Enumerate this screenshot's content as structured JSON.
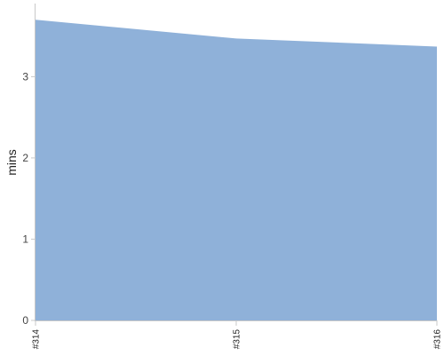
{
  "chart_data": {
    "type": "area",
    "ylabel": "mins",
    "categories": [
      "#314",
      "#315",
      "#316"
    ],
    "series": [
      {
        "values": [
          3.7,
          3.47,
          3.37
        ]
      }
    ],
    "ylim": [
      0,
      3.9
    ],
    "yticks": [
      0,
      1,
      2,
      3
    ],
    "grid": true,
    "area_color": "#8fb1d9",
    "grid_color": "#9aa3ad",
    "axis_color": "#c8c8c8"
  }
}
